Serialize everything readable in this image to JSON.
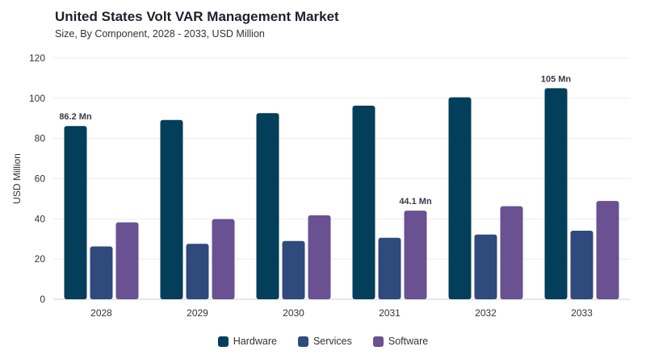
{
  "chart_data": {
    "type": "bar",
    "title": "United States Volt VAR Management Market",
    "subtitle": "Size, By Component, 2028 - 2033, USD Million",
    "ylabel": "USD Million",
    "xlabel": "",
    "ylim": [
      0,
      120
    ],
    "yticks": [
      0,
      20,
      40,
      60,
      80,
      100,
      120
    ],
    "grid": true,
    "legend_position": "bottom",
    "categories": [
      "2028",
      "2029",
      "2030",
      "2031",
      "2032",
      "2033"
    ],
    "series": [
      {
        "name": "Hardware",
        "color": "#033e5a",
        "values": [
          86.2,
          89.2,
          92.6,
          96.3,
          100.5,
          105
        ]
      },
      {
        "name": "Services",
        "color": "#2f4a7c",
        "values": [
          26.3,
          27.6,
          29.0,
          30.6,
          32.2,
          34.1
        ]
      },
      {
        "name": "Software",
        "color": "#6a5192",
        "values": [
          38.3,
          39.9,
          41.8,
          44.1,
          46.3,
          48.9
        ]
      }
    ],
    "annotations": [
      {
        "series": 0,
        "category": "2028",
        "text": "86.2 Mn"
      },
      {
        "series": 2,
        "category": "2031",
        "text": "44.1 Mn"
      },
      {
        "series": 0,
        "category": "2033",
        "text": "105 Mn"
      }
    ]
  }
}
